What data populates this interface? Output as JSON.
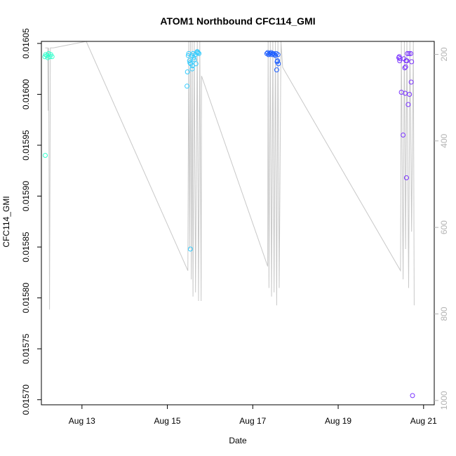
{
  "chart_data": {
    "type": "scatter",
    "title": "ATOM1 Northbound CFC114_GMI",
    "xlabel": "Date",
    "ylabel": "CFC114_GMI",
    "x_ticks": [
      "Aug 13",
      "Aug 15",
      "Aug 17",
      "Aug 19",
      "Aug 21"
    ],
    "x_tick_days": [
      13,
      15,
      17,
      19,
      21
    ],
    "xlim_days": [
      12.05,
      21.25
    ],
    "ylim": [
      0.015695,
      0.016052
    ],
    "y_ticks": [
      "0.01570",
      "0.01575",
      "0.01580",
      "0.01585",
      "0.01590",
      "0.01595",
      "0.01600",
      "0.01605"
    ],
    "y_tick_values": [
      0.0157,
      0.01575,
      0.0158,
      0.01585,
      0.0159,
      0.01595,
      0.016,
      0.01605
    ],
    "secondary_axis": {
      "color": "#b3b3b3",
      "ticks": [
        "200",
        "400",
        "600",
        "800",
        "1000"
      ],
      "tick_values": [
        200,
        400,
        600,
        800,
        1000
      ],
      "lim": [
        1010,
        170
      ]
    },
    "pressure_trace": [
      [
        12.14,
        185
      ],
      [
        12.2,
        185
      ],
      [
        12.21,
        330
      ],
      [
        12.22,
        185
      ],
      [
        12.24,
        790
      ],
      [
        12.26,
        185
      ],
      [
        12.3,
        185
      ],
      [
        12.33,
        185
      ],
      [
        13.1,
        170
      ],
      [
        15.48,
        700
      ],
      [
        15.5,
        170
      ],
      [
        15.52,
        650
      ],
      [
        15.54,
        170
      ],
      [
        15.56,
        720
      ],
      [
        15.58,
        170
      ],
      [
        15.6,
        760
      ],
      [
        15.63,
        170
      ],
      [
        15.66,
        750
      ],
      [
        15.7,
        170
      ],
      [
        15.73,
        770
      ],
      [
        15.76,
        170
      ],
      [
        15.79,
        770
      ],
      [
        15.8,
        250
      ],
      [
        17.35,
        690
      ],
      [
        17.36,
        170
      ],
      [
        17.38,
        740
      ],
      [
        17.41,
        170
      ],
      [
        17.44,
        760
      ],
      [
        17.47,
        170
      ],
      [
        17.5,
        750
      ],
      [
        17.53,
        170
      ],
      [
        17.56,
        780
      ],
      [
        17.59,
        170
      ],
      [
        17.62,
        740
      ],
      [
        17.66,
        170
      ],
      [
        17.7,
        230
      ],
      [
        20.46,
        700
      ],
      [
        20.48,
        170
      ],
      [
        20.52,
        720
      ],
      [
        20.55,
        170
      ],
      [
        20.58,
        650
      ],
      [
        20.61,
        170
      ],
      [
        20.65,
        740
      ],
      [
        20.68,
        170
      ],
      [
        20.72,
        610
      ],
      [
        20.76,
        170
      ],
      [
        20.78,
        780
      ]
    ],
    "series": [
      {
        "color": "#33ffcc",
        "points": [
          [
            12.13,
            0.016037
          ],
          [
            12.15,
            0.016039
          ],
          [
            12.18,
            0.016038
          ],
          [
            12.2,
            0.016036
          ],
          [
            12.22,
            0.01604
          ],
          [
            12.25,
            0.016037
          ],
          [
            12.27,
            0.016039
          ],
          [
            12.3,
            0.016037
          ],
          [
            12.14,
            0.01594
          ]
        ]
      },
      {
        "color": "#33ccff",
        "points": [
          [
            15.47,
            0.016022
          ],
          [
            15.49,
            0.016038
          ],
          [
            15.5,
            0.01604
          ],
          [
            15.52,
            0.016033
          ],
          [
            15.53,
            0.016031
          ],
          [
            15.55,
            0.01603
          ],
          [
            15.57,
            0.016038
          ],
          [
            15.59,
            0.016028
          ],
          [
            15.6,
            0.01604
          ],
          [
            15.62,
            0.016036
          ],
          [
            15.63,
            0.016034
          ],
          [
            15.65,
            0.016039
          ],
          [
            15.67,
            0.01603
          ],
          [
            15.69,
            0.016041
          ],
          [
            15.7,
            0.016042
          ],
          [
            15.72,
            0.016041
          ],
          [
            15.74,
            0.01604
          ],
          [
            15.54,
            0.015848
          ],
          [
            15.46,
            0.016008
          ],
          [
            15.58,
            0.016025
          ]
        ]
      },
      {
        "color": "#1f5fff",
        "points": [
          [
            17.33,
            0.01604
          ],
          [
            17.35,
            0.016041
          ],
          [
            17.37,
            0.016039
          ],
          [
            17.39,
            0.01604
          ],
          [
            17.41,
            0.01604
          ],
          [
            17.43,
            0.016041
          ],
          [
            17.45,
            0.016039
          ],
          [
            17.47,
            0.01604
          ],
          [
            17.49,
            0.01604
          ],
          [
            17.51,
            0.016039
          ],
          [
            17.53,
            0.016038
          ],
          [
            17.55,
            0.01604
          ],
          [
            17.57,
            0.016032
          ],
          [
            17.58,
            0.016033
          ],
          [
            17.59,
            0.016039
          ],
          [
            17.6,
            0.01603
          ],
          [
            17.56,
            0.016024
          ]
        ]
      },
      {
        "color": "#7a33ff",
        "points": [
          [
            20.42,
            0.016036
          ],
          [
            20.43,
            0.016037
          ],
          [
            20.44,
            0.016033
          ],
          [
            20.45,
            0.016035
          ],
          [
            20.48,
            0.016002
          ],
          [
            20.52,
            0.01596
          ],
          [
            20.54,
            0.016035
          ],
          [
            20.56,
            0.016026
          ],
          [
            20.57,
            0.016001
          ],
          [
            20.58,
            0.016027
          ],
          [
            20.59,
            0.016033
          ],
          [
            20.6,
            0.015918
          ],
          [
            20.61,
            0.016033
          ],
          [
            20.62,
            0.01604
          ],
          [
            20.64,
            0.01599
          ],
          [
            20.66,
            0.01604
          ],
          [
            20.67,
            0.016
          ],
          [
            20.7,
            0.01604
          ],
          [
            20.72,
            0.016032
          ],
          [
            20.71,
            0.016012
          ],
          [
            20.74,
            0.015704
          ]
        ]
      }
    ],
    "grid": false,
    "legend": "none"
  }
}
